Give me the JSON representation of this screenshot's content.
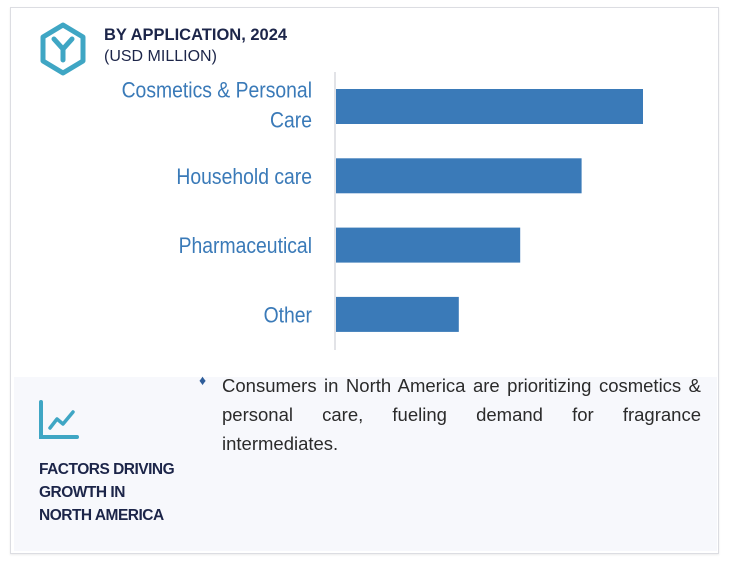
{
  "header": {
    "title": "BY APPLICATION, 2024",
    "subtitle": "(USD MILLION)",
    "logo_icon": "hexagon-y-icon"
  },
  "chart_data": {
    "type": "bar",
    "orientation": "horizontal",
    "categories": [
      "Cosmetics & Personal Care",
      "Household care",
      "Pharmaceutical",
      "Other"
    ],
    "category_lines": [
      [
        "Cosmetics & Personal",
        "Care"
      ],
      [
        "Household care"
      ],
      [
        "Pharmaceutical"
      ],
      [
        "Other"
      ]
    ],
    "values": [
      100,
      80,
      60,
      40
    ],
    "value_note_scale": "relative",
    "xlim": [
      0,
      100
    ],
    "title": "BY APPLICATION, 2024",
    "ylabel": "",
    "xlabel": "",
    "grid": false,
    "bar_color": "#3a7ab8",
    "label_color": "#3a7ab8"
  },
  "factors": {
    "icon": "line-chart-icon",
    "title_lines": [
      "FACTORS DRIVING",
      "GROWTH IN",
      "NORTH AMERICA"
    ],
    "bullet": "♦",
    "items": [
      "Consumers in North America are prioritizing cosmetics & personal care, fueling demand for fragrance intermediates."
    ]
  }
}
